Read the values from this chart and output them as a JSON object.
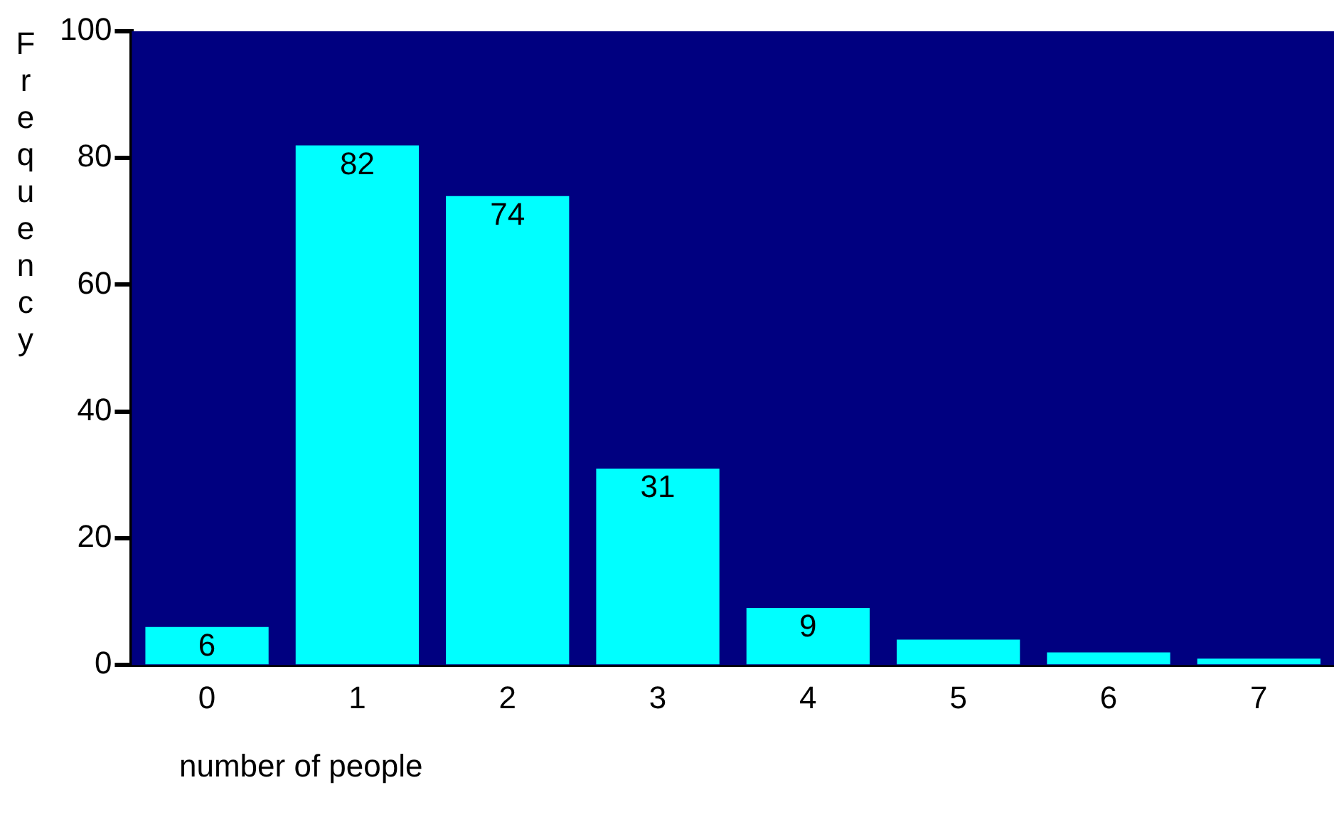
{
  "chart_data": {
    "type": "bar",
    "xlabel": "number of people",
    "ylabel": "Frequency",
    "categories": [
      "0",
      "1",
      "2",
      "3",
      "4",
      "5",
      "6",
      "7"
    ],
    "values": [
      6,
      82,
      74,
      31,
      9,
      4,
      2,
      1
    ],
    "value_labels": [
      "6",
      "82",
      "74",
      "31",
      "9",
      null,
      null,
      null
    ],
    "color": "#00ffff",
    "ylim": [
      0,
      100
    ],
    "yticks": [
      0,
      20,
      40,
      60,
      80,
      100
    ],
    "grid": false
  }
}
